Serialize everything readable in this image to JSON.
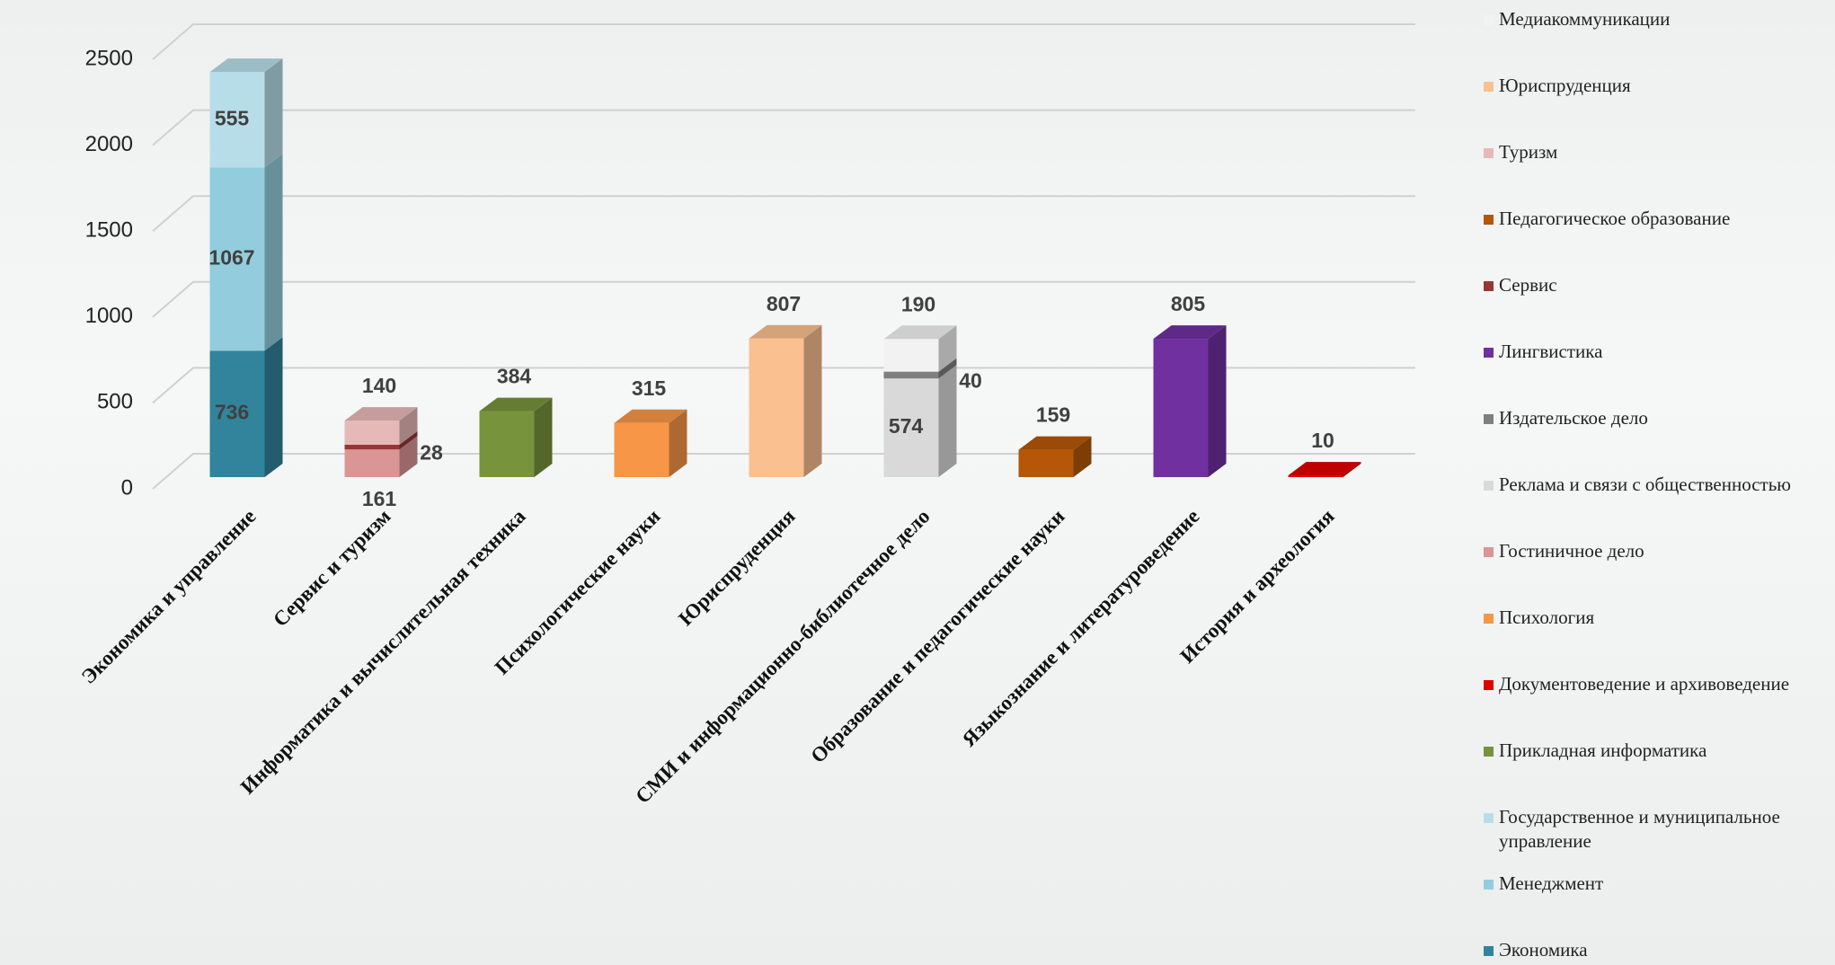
{
  "chart_data": {
    "type": "stacked-bar-3d",
    "categories": [
      "Экономика и управление",
      "Сервис и туризм",
      "Информатика и вычислительная техника",
      "Психологические науки",
      "Юриспруденция",
      "СМИ и информационно-библиотечное дело",
      "Образование и педагогические науки",
      "Языкознание и литературоведение",
      "История и археология"
    ],
    "series": [
      {
        "name": "Медиакоммуникации",
        "color": "#f2f2f2",
        "values": [
          null,
          null,
          null,
          null,
          null,
          190,
          null,
          null,
          null
        ]
      },
      {
        "name": "Юриспруденция",
        "color": "#fac090",
        "values": [
          null,
          null,
          null,
          null,
          807,
          null,
          null,
          null,
          null
        ]
      },
      {
        "name": "Туризм",
        "color": "#e6b9b8",
        "values": [
          null,
          140,
          null,
          null,
          null,
          null,
          null,
          null,
          null
        ]
      },
      {
        "name": "Педагогическое образование",
        "color": "#b65708",
        "values": [
          null,
          null,
          null,
          null,
          null,
          null,
          159,
          null,
          null
        ]
      },
      {
        "name": "Сервис",
        "color": "#953735",
        "values": [
          null,
          28,
          null,
          null,
          null,
          null,
          null,
          null,
          null
        ]
      },
      {
        "name": "Лингвистика",
        "color": "#7030a0",
        "values": [
          null,
          null,
          null,
          null,
          null,
          null,
          null,
          805,
          null
        ]
      },
      {
        "name": "Издательское дело",
        "color": "#7f7f7f",
        "values": [
          null,
          null,
          null,
          null,
          null,
          40,
          null,
          null,
          null
        ]
      },
      {
        "name": "Реклама и связи с общественностью",
        "color": "#d9d9d9",
        "values": [
          null,
          null,
          null,
          null,
          null,
          574,
          null,
          null,
          null
        ]
      },
      {
        "name": "Гостиничное дело",
        "color": "#d99694",
        "values": [
          null,
          161,
          null,
          null,
          null,
          null,
          null,
          null,
          null
        ]
      },
      {
        "name": "Психология",
        "color": "#f79646",
        "values": [
          null,
          null,
          null,
          315,
          null,
          null,
          null,
          null,
          null
        ]
      },
      {
        "name": "Документоведение и архивоведение",
        "color": "#e00000",
        "values": [
          null,
          null,
          null,
          null,
          null,
          null,
          null,
          null,
          10
        ]
      },
      {
        "name": "Прикладная информатика",
        "color": "#77933c",
        "values": [
          null,
          null,
          384,
          null,
          null,
          null,
          null,
          null,
          null
        ]
      },
      {
        "name": "Государственное и муниципальное управление",
        "color": "#b7dee8",
        "values": [
          555,
          null,
          null,
          null,
          null,
          null,
          null,
          null,
          null
        ]
      },
      {
        "name": "Менеджмент",
        "color": "#93cddd",
        "values": [
          1067,
          null,
          null,
          null,
          null,
          null,
          null,
          null,
          null
        ]
      },
      {
        "name": "Экономика",
        "color": "#31849b",
        "values": [
          736,
          null,
          null,
          null,
          null,
          null,
          null,
          null,
          null
        ]
      }
    ],
    "ylim": [
      0,
      2500
    ],
    "yticks": [
      0,
      500,
      1000,
      1500,
      2000,
      2500
    ],
    "grid": true,
    "legend": "right"
  }
}
